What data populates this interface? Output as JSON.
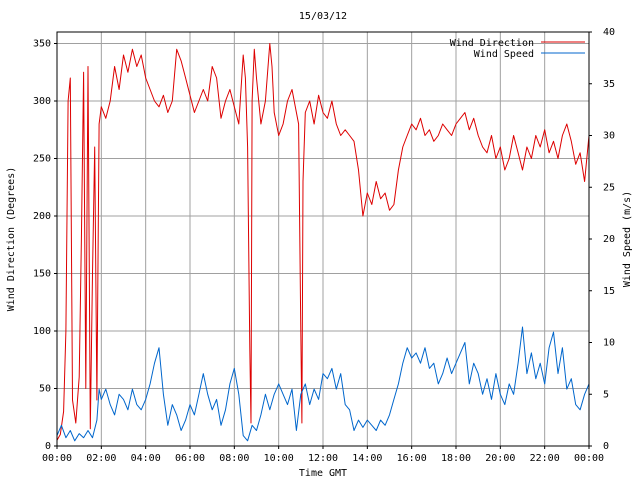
{
  "chart_data": {
    "type": "line",
    "title": "15/03/12",
    "xlabel": "Time GMT",
    "ylabel_left": "Wind Direction (Degrees)",
    "ylabel_right": "Wind Speed (m/s)",
    "xlim": [
      0,
      24
    ],
    "ylim_left": [
      0,
      360
    ],
    "ylim_right": [
      0,
      40
    ],
    "yticks_left": [
      0,
      50,
      100,
      150,
      200,
      250,
      300,
      350
    ],
    "yticks_right": [
      0,
      5,
      10,
      15,
      20,
      25,
      30,
      35,
      40
    ],
    "xticks": [
      "00:00",
      "02:00",
      "04:00",
      "06:00",
      "08:00",
      "10:00",
      "12:00",
      "14:00",
      "16:00",
      "18:00",
      "20:00",
      "22:00",
      "00:00"
    ],
    "grid": true,
    "legend_position": "top-right",
    "series": [
      {
        "name": "Wind Direction",
        "axis": "left",
        "color": "#dd0000",
        "points": [
          [
            0.0,
            5
          ],
          [
            0.15,
            10
          ],
          [
            0.3,
            30
          ],
          [
            0.4,
            100
          ],
          [
            0.5,
            300
          ],
          [
            0.6,
            320
          ],
          [
            0.7,
            40
          ],
          [
            0.85,
            20
          ],
          [
            1.0,
            60
          ],
          [
            1.1,
            180
          ],
          [
            1.2,
            325
          ],
          [
            1.3,
            50
          ],
          [
            1.4,
            330
          ],
          [
            1.5,
            15
          ],
          [
            1.6,
            150
          ],
          [
            1.7,
            260
          ],
          [
            1.8,
            40
          ],
          [
            1.9,
            280
          ],
          [
            2.0,
            295
          ],
          [
            2.2,
            285
          ],
          [
            2.4,
            300
          ],
          [
            2.6,
            330
          ],
          [
            2.8,
            310
          ],
          [
            3.0,
            340
          ],
          [
            3.2,
            325
          ],
          [
            3.4,
            345
          ],
          [
            3.6,
            330
          ],
          [
            3.8,
            340
          ],
          [
            4.0,
            320
          ],
          [
            4.2,
            310
          ],
          [
            4.4,
            300
          ],
          [
            4.6,
            295
          ],
          [
            4.8,
            305
          ],
          [
            5.0,
            290
          ],
          [
            5.2,
            300
          ],
          [
            5.4,
            345
          ],
          [
            5.6,
            335
          ],
          [
            5.8,
            320
          ],
          [
            6.0,
            305
          ],
          [
            6.2,
            290
          ],
          [
            6.4,
            300
          ],
          [
            6.6,
            310
          ],
          [
            6.8,
            300
          ],
          [
            7.0,
            330
          ],
          [
            7.2,
            320
          ],
          [
            7.4,
            285
          ],
          [
            7.6,
            300
          ],
          [
            7.8,
            310
          ],
          [
            8.0,
            295
          ],
          [
            8.2,
            280
          ],
          [
            8.4,
            340
          ],
          [
            8.5,
            320
          ],
          [
            8.6,
            260
          ],
          [
            8.7,
            85
          ],
          [
            8.75,
            20
          ],
          [
            8.8,
            300
          ],
          [
            8.9,
            345
          ],
          [
            9.0,
            320
          ],
          [
            9.2,
            280
          ],
          [
            9.4,
            300
          ],
          [
            9.6,
            350
          ],
          [
            9.7,
            330
          ],
          [
            9.8,
            290
          ],
          [
            10.0,
            270
          ],
          [
            10.2,
            280
          ],
          [
            10.4,
            300
          ],
          [
            10.6,
            310
          ],
          [
            10.8,
            290
          ],
          [
            10.9,
            280
          ],
          [
            11.0,
            100
          ],
          [
            11.05,
            20
          ],
          [
            11.1,
            230
          ],
          [
            11.2,
            290
          ],
          [
            11.4,
            300
          ],
          [
            11.6,
            280
          ],
          [
            11.8,
            305
          ],
          [
            12.0,
            290
          ],
          [
            12.2,
            285
          ],
          [
            12.4,
            300
          ],
          [
            12.6,
            280
          ],
          [
            12.8,
            270
          ],
          [
            13.0,
            275
          ],
          [
            13.2,
            270
          ],
          [
            13.4,
            265
          ],
          [
            13.6,
            240
          ],
          [
            13.8,
            200
          ],
          [
            14.0,
            220
          ],
          [
            14.2,
            210
          ],
          [
            14.4,
            230
          ],
          [
            14.6,
            215
          ],
          [
            14.8,
            220
          ],
          [
            15.0,
            205
          ],
          [
            15.2,
            210
          ],
          [
            15.4,
            240
          ],
          [
            15.6,
            260
          ],
          [
            15.8,
            270
          ],
          [
            16.0,
            280
          ],
          [
            16.2,
            275
          ],
          [
            16.4,
            285
          ],
          [
            16.6,
            270
          ],
          [
            16.8,
            275
          ],
          [
            17.0,
            265
          ],
          [
            17.2,
            270
          ],
          [
            17.4,
            280
          ],
          [
            17.6,
            275
          ],
          [
            17.8,
            270
          ],
          [
            18.0,
            280
          ],
          [
            18.2,
            285
          ],
          [
            18.4,
            290
          ],
          [
            18.6,
            275
          ],
          [
            18.8,
            285
          ],
          [
            19.0,
            270
          ],
          [
            19.2,
            260
          ],
          [
            19.4,
            255
          ],
          [
            19.6,
            270
          ],
          [
            19.8,
            250
          ],
          [
            20.0,
            260
          ],
          [
            20.2,
            240
          ],
          [
            20.4,
            250
          ],
          [
            20.6,
            270
          ],
          [
            20.8,
            255
          ],
          [
            21.0,
            240
          ],
          [
            21.2,
            260
          ],
          [
            21.4,
            250
          ],
          [
            21.6,
            270
          ],
          [
            21.8,
            260
          ],
          [
            22.0,
            275
          ],
          [
            22.2,
            255
          ],
          [
            22.4,
            265
          ],
          [
            22.6,
            250
          ],
          [
            22.8,
            270
          ],
          [
            23.0,
            280
          ],
          [
            23.2,
            265
          ],
          [
            23.4,
            245
          ],
          [
            23.6,
            255
          ],
          [
            23.8,
            230
          ],
          [
            24.0,
            270
          ]
        ]
      },
      {
        "name": "Wind Speed",
        "axis": "right",
        "color": "#0066cc",
        "points": [
          [
            0.0,
            1.0
          ],
          [
            0.2,
            2.0
          ],
          [
            0.4,
            0.8
          ],
          [
            0.6,
            1.5
          ],
          [
            0.8,
            0.5
          ],
          [
            1.0,
            1.2
          ],
          [
            1.2,
            0.8
          ],
          [
            1.4,
            1.5
          ],
          [
            1.6,
            0.8
          ],
          [
            1.8,
            2.5
          ],
          [
            1.9,
            5.5
          ],
          [
            2.0,
            4.5
          ],
          [
            2.2,
            5.5
          ],
          [
            2.4,
            4.0
          ],
          [
            2.6,
            3.0
          ],
          [
            2.8,
            5.0
          ],
          [
            3.0,
            4.5
          ],
          [
            3.2,
            3.5
          ],
          [
            3.4,
            5.5
          ],
          [
            3.6,
            4.0
          ],
          [
            3.8,
            3.5
          ],
          [
            4.0,
            4.5
          ],
          [
            4.2,
            6.0
          ],
          [
            4.4,
            8.0
          ],
          [
            4.6,
            9.5
          ],
          [
            4.8,
            5.0
          ],
          [
            5.0,
            2.0
          ],
          [
            5.2,
            4.0
          ],
          [
            5.4,
            3.0
          ],
          [
            5.6,
            1.5
          ],
          [
            5.8,
            2.5
          ],
          [
            6.0,
            4.0
          ],
          [
            6.2,
            3.0
          ],
          [
            6.4,
            5.0
          ],
          [
            6.6,
            7.0
          ],
          [
            6.8,
            5.0
          ],
          [
            7.0,
            3.5
          ],
          [
            7.2,
            4.5
          ],
          [
            7.4,
            2.0
          ],
          [
            7.6,
            3.5
          ],
          [
            7.8,
            6.0
          ],
          [
            8.0,
            7.5
          ],
          [
            8.2,
            5.0
          ],
          [
            8.4,
            1.0
          ],
          [
            8.6,
            0.5
          ],
          [
            8.8,
            2.0
          ],
          [
            9.0,
            1.5
          ],
          [
            9.2,
            3.0
          ],
          [
            9.4,
            5.0
          ],
          [
            9.6,
            3.5
          ],
          [
            9.8,
            5.0
          ],
          [
            10.0,
            6.0
          ],
          [
            10.2,
            5.0
          ],
          [
            10.4,
            4.0
          ],
          [
            10.6,
            5.5
          ],
          [
            10.8,
            1.5
          ],
          [
            11.0,
            5.0
          ],
          [
            11.2,
            6.0
          ],
          [
            11.4,
            4.0
          ],
          [
            11.6,
            5.5
          ],
          [
            11.8,
            4.5
          ],
          [
            12.0,
            7.0
          ],
          [
            12.2,
            6.5
          ],
          [
            12.4,
            7.5
          ],
          [
            12.6,
            5.5
          ],
          [
            12.8,
            7.0
          ],
          [
            13.0,
            4.0
          ],
          [
            13.2,
            3.5
          ],
          [
            13.4,
            1.5
          ],
          [
            13.6,
            2.5
          ],
          [
            13.8,
            1.8
          ],
          [
            14.0,
            2.5
          ],
          [
            14.2,
            2.0
          ],
          [
            14.4,
            1.5
          ],
          [
            14.6,
            2.5
          ],
          [
            14.8,
            2.0
          ],
          [
            15.0,
            3.0
          ],
          [
            15.2,
            4.5
          ],
          [
            15.4,
            6.0
          ],
          [
            15.6,
            8.0
          ],
          [
            15.8,
            9.5
          ],
          [
            16.0,
            8.5
          ],
          [
            16.2,
            9.0
          ],
          [
            16.4,
            8.0
          ],
          [
            16.6,
            9.5
          ],
          [
            16.8,
            7.5
          ],
          [
            17.0,
            8.0
          ],
          [
            17.2,
            6.0
          ],
          [
            17.4,
            7.0
          ],
          [
            17.6,
            8.5
          ],
          [
            17.8,
            7.0
          ],
          [
            18.0,
            8.0
          ],
          [
            18.2,
            9.0
          ],
          [
            18.4,
            10.0
          ],
          [
            18.6,
            6.0
          ],
          [
            18.8,
            8.0
          ],
          [
            19.0,
            7.0
          ],
          [
            19.2,
            5.0
          ],
          [
            19.4,
            6.5
          ],
          [
            19.6,
            4.5
          ],
          [
            19.8,
            7.0
          ],
          [
            20.0,
            5.0
          ],
          [
            20.2,
            4.0
          ],
          [
            20.4,
            6.0
          ],
          [
            20.6,
            5.0
          ],
          [
            20.8,
            8.0
          ],
          [
            21.0,
            11.5
          ],
          [
            21.2,
            7.0
          ],
          [
            21.4,
            9.0
          ],
          [
            21.6,
            6.5
          ],
          [
            21.8,
            8.0
          ],
          [
            22.0,
            6.0
          ],
          [
            22.2,
            9.5
          ],
          [
            22.4,
            11.0
          ],
          [
            22.6,
            7.0
          ],
          [
            22.8,
            9.5
          ],
          [
            23.0,
            5.5
          ],
          [
            23.2,
            6.5
          ],
          [
            23.4,
            4.0
          ],
          [
            23.6,
            3.5
          ],
          [
            23.8,
            5.0
          ],
          [
            24.0,
            6.0
          ]
        ]
      }
    ]
  }
}
